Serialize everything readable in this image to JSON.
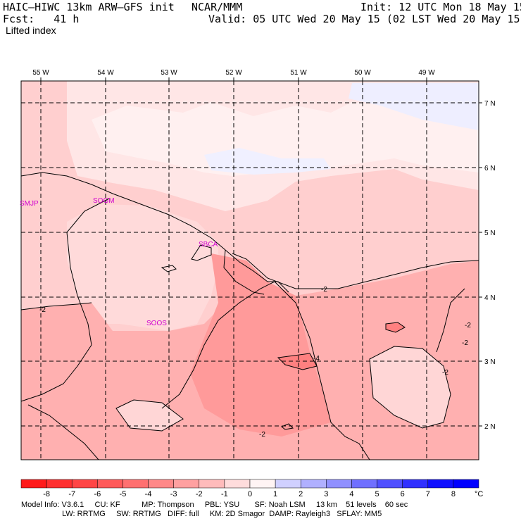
{
  "header": {
    "model": "HAIC–HIWC 13km ARW–GFS init",
    "org": "NCAR/MMM",
    "init": "Init: 12 UTC Mon 18 May 15",
    "fcst": "Fcst:   41 h",
    "valid": "Valid: 05 UTC Wed 20 May 15 (02 LST Wed 20 May 15)",
    "field": "Lifted index"
  },
  "map": {
    "lon_labels": [
      "55 W",
      "54 W",
      "53 W",
      "52 W",
      "51 W",
      "50 W",
      "49 W"
    ],
    "lat_labels": [
      "7 N",
      "6 N",
      "5 N",
      "4 N",
      "3 N",
      "2 N"
    ],
    "stations": [
      "SMJP",
      "SOGM",
      "SBCA",
      "SOOS"
    ],
    "contour_labels": [
      "-2",
      "-2",
      "-4",
      "-2",
      "-2",
      "-2",
      "-2"
    ]
  },
  "colorbar": {
    "ticks": [
      "-8",
      "-7",
      "-6",
      "-5",
      "-4",
      "-3",
      "-2",
      "-1",
      "0",
      "1",
      "2",
      "3",
      "4",
      "5",
      "6",
      "7",
      "8"
    ],
    "unit": "°C",
    "colors": [
      "#ff1a1a",
      "#ff3030",
      "#ff4545",
      "#ff5a5a",
      "#ff7070",
      "#ff8888",
      "#ffa0a0",
      "#ffbbbb",
      "#ffdcdc",
      "#fff4f4",
      "#d0d0ff",
      "#b0b0ff",
      "#9090ff",
      "#7070ff",
      "#5050ff",
      "#3030ff",
      "#1010ff",
      "#0000ff"
    ]
  },
  "footer": {
    "line1": "Model Info: V3.6.1     CU: KF          MP: Thompson     PBL: YSU       SF: Noah LSM     13 km    51 levels    60 sec",
    "line2": "                   LW: RRTMG     SW: RRTMG   DIFF: full     KM: 2D Smagor  DAMP: Rayleigh3   SFLAY: MM5"
  }
}
